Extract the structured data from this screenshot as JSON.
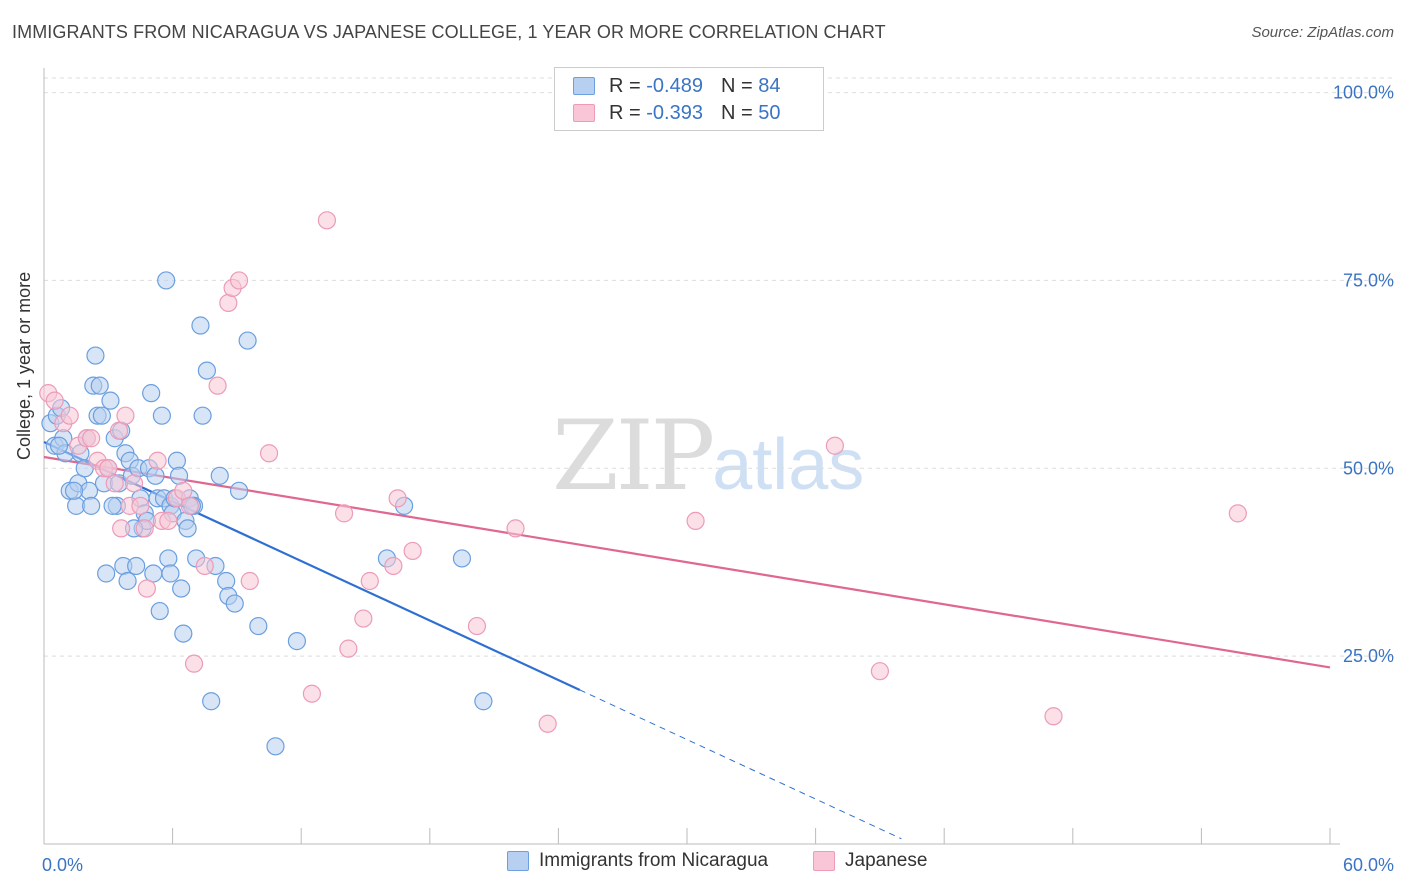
{
  "chart_data": {
    "type": "scatter",
    "title": "IMMIGRANTS FROM NICARAGUA VS JAPANESE COLLEGE, 1 YEAR OR MORE CORRELATION CHART",
    "source": "Source: ZipAtlas.com",
    "watermark": {
      "zip": "ZIP",
      "atlas": "atlas"
    },
    "ylabel": "College, 1 year or more",
    "xlim": [
      0,
      60
    ],
    "ylim": [
      0,
      105
    ],
    "x_tick_labels": [
      "0.0%",
      "60.0%"
    ],
    "y_ticks": [
      {
        "value": 100,
        "label": "100.0%"
      },
      {
        "value": 75,
        "label": "75.0%"
      },
      {
        "value": 50,
        "label": "50.0%"
      },
      {
        "value": 25,
        "label": "25.0%"
      }
    ],
    "legend": [
      {
        "r_label": "R =",
        "r_value": "-0.489",
        "n_label": "N =",
        "n_value": "84"
      },
      {
        "r_label": "R =",
        "r_value": "-0.393",
        "n_label": "N =",
        "n_value": "50"
      }
    ],
    "series": [
      {
        "name": "Immigrants from Nicaragua",
        "color": "#6b9fdf",
        "fill": "#b7d0f1",
        "line_color": "#2e6fd1",
        "trend": {
          "x0": 0,
          "y0": 53.5,
          "x1": 25,
          "y1": 20.5,
          "dash_to_x": 40
        },
        "points": [
          [
            0.3,
            56
          ],
          [
            0.5,
            53
          ],
          [
            0.6,
            57
          ],
          [
            0.8,
            58
          ],
          [
            0.9,
            54
          ],
          [
            1,
            52
          ],
          [
            1.2,
            47
          ],
          [
            1.5,
            45
          ],
          [
            1.6,
            48
          ],
          [
            1.7,
            52
          ],
          [
            1.9,
            50
          ],
          [
            2,
            54
          ],
          [
            2.1,
            47
          ],
          [
            2.2,
            45
          ],
          [
            2.3,
            61
          ],
          [
            2.4,
            65
          ],
          [
            2.5,
            57
          ],
          [
            2.6,
            61
          ],
          [
            2.7,
            57
          ],
          [
            2.8,
            48
          ],
          [
            2.9,
            36
          ],
          [
            3,
            50
          ],
          [
            3.1,
            59
          ],
          [
            3.3,
            54
          ],
          [
            3.4,
            45
          ],
          [
            3.5,
            48
          ],
          [
            3.6,
            55
          ],
          [
            3.7,
            37
          ],
          [
            3.8,
            52
          ],
          [
            3.9,
            35
          ],
          [
            4,
            51
          ],
          [
            4.1,
            49
          ],
          [
            4.3,
            37
          ],
          [
            4.4,
            50
          ],
          [
            4.5,
            46
          ],
          [
            4.6,
            42
          ],
          [
            4.7,
            44
          ],
          [
            4.8,
            43
          ],
          [
            4.9,
            50
          ],
          [
            5,
            60
          ],
          [
            5.1,
            36
          ],
          [
            5.2,
            49
          ],
          [
            5.3,
            46
          ],
          [
            5.4,
            31
          ],
          [
            5.5,
            57
          ],
          [
            5.6,
            46
          ],
          [
            5.7,
            75
          ],
          [
            5.8,
            38
          ],
          [
            5.9,
            45
          ],
          [
            6,
            44
          ],
          [
            6.1,
            46
          ],
          [
            6.2,
            51
          ],
          [
            6.3,
            49
          ],
          [
            6.4,
            34
          ],
          [
            6.5,
            28
          ],
          [
            6.6,
            43
          ],
          [
            6.7,
            42
          ],
          [
            6.8,
            46
          ],
          [
            7,
            45
          ],
          [
            7.1,
            38
          ],
          [
            7.3,
            69
          ],
          [
            7.4,
            57
          ],
          [
            7.6,
            63
          ],
          [
            7.8,
            19
          ],
          [
            8,
            37
          ],
          [
            8.2,
            49
          ],
          [
            8.5,
            35
          ],
          [
            8.6,
            33
          ],
          [
            8.9,
            32
          ],
          [
            9.1,
            47
          ],
          [
            9.5,
            67
          ],
          [
            10,
            29
          ],
          [
            10.8,
            13
          ],
          [
            11.8,
            27
          ],
          [
            16,
            38
          ],
          [
            16.8,
            45
          ],
          [
            19.5,
            38
          ],
          [
            20.5,
            19
          ],
          [
            0.7,
            53
          ],
          [
            1.4,
            47
          ],
          [
            3.2,
            45
          ],
          [
            4.2,
            42
          ],
          [
            6.9,
            45
          ],
          [
            5.9,
            36
          ]
        ]
      },
      {
        "name": "Japanese",
        "color": "#ec9bb8",
        "fill": "#f8c6d6",
        "line_color": "#e06790",
        "trend": {
          "x0": 0,
          "y0": 51.5,
          "x1": 60,
          "y1": 23.5
        },
        "points": [
          [
            0.2,
            60
          ],
          [
            0.5,
            59
          ],
          [
            0.9,
            56
          ],
          [
            1.2,
            57
          ],
          [
            1.6,
            53
          ],
          [
            2,
            54
          ],
          [
            2.2,
            54
          ],
          [
            2.5,
            51
          ],
          [
            2.8,
            50
          ],
          [
            3,
            50
          ],
          [
            3.3,
            48
          ],
          [
            3.5,
            55
          ],
          [
            3.6,
            42
          ],
          [
            3.8,
            57
          ],
          [
            4,
            45
          ],
          [
            4.2,
            48
          ],
          [
            4.5,
            45
          ],
          [
            4.7,
            42
          ],
          [
            4.8,
            34
          ],
          [
            5.3,
            51
          ],
          [
            5.5,
            43
          ],
          [
            5.8,
            43
          ],
          [
            6.2,
            46
          ],
          [
            6.5,
            47
          ],
          [
            6.8,
            45
          ],
          [
            7,
            24
          ],
          [
            7.5,
            37
          ],
          [
            8.1,
            61
          ],
          [
            8.6,
            72
          ],
          [
            8.8,
            74
          ],
          [
            9.1,
            75
          ],
          [
            9.6,
            35
          ],
          [
            10.5,
            52
          ],
          [
            12.5,
            20
          ],
          [
            13.2,
            83
          ],
          [
            14,
            44
          ],
          [
            14.2,
            26
          ],
          [
            14.9,
            30
          ],
          [
            15.2,
            35
          ],
          [
            16.3,
            37
          ],
          [
            16.5,
            46
          ],
          [
            17.2,
            39
          ],
          [
            20.2,
            29
          ],
          [
            22,
            42
          ],
          [
            23.5,
            16
          ],
          [
            30.4,
            43
          ],
          [
            36.9,
            53
          ],
          [
            39,
            23
          ],
          [
            47.1,
            17
          ],
          [
            55.7,
            44
          ]
        ]
      }
    ],
    "bottom_legend": [
      "Immigrants from Nicaragua",
      "Japanese"
    ]
  }
}
